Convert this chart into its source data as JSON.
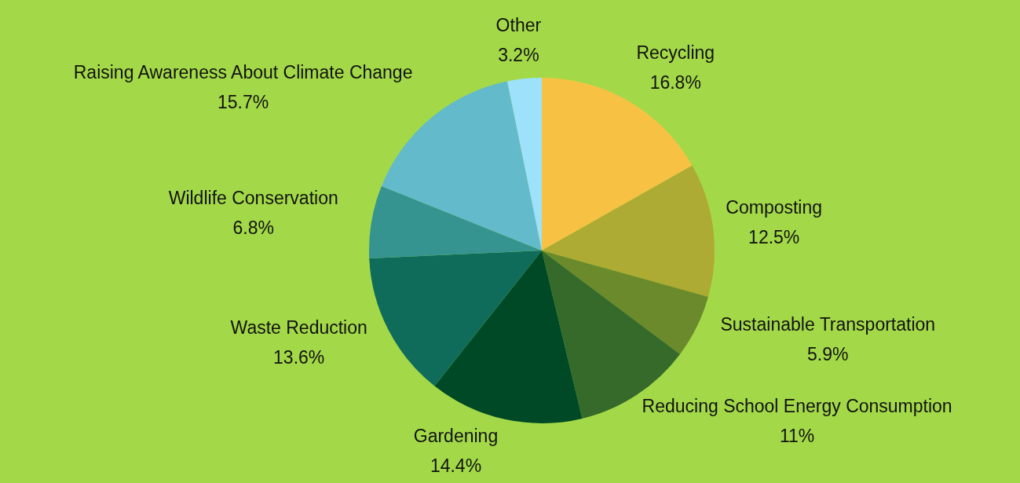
{
  "chart_data": {
    "type": "pie",
    "categories": [
      "Recycling",
      "Composting",
      "Sustainable Transportation",
      "Reducing School Energy Consumption",
      "Gardening",
      "Waste Reduction",
      "Wildlife Conservation",
      "Raising Awareness About Climate Change",
      "Other"
    ],
    "values": [
      16.8,
      12.5,
      5.9,
      11,
      14.4,
      13.6,
      6.8,
      15.7,
      3.2
    ],
    "value_labels": [
      "16.8%",
      "12.5%",
      "5.9%",
      "11%",
      "14.4%",
      "13.6%",
      "6.8%",
      "15.7%",
      "3.2%"
    ],
    "colors": [
      "#f7c244",
      "#adab33",
      "#6b8a2b",
      "#356a2b",
      "#004927",
      "#106c5a",
      "#359490",
      "#62bacb",
      "#9de1fa"
    ],
    "legend": false
  }
}
